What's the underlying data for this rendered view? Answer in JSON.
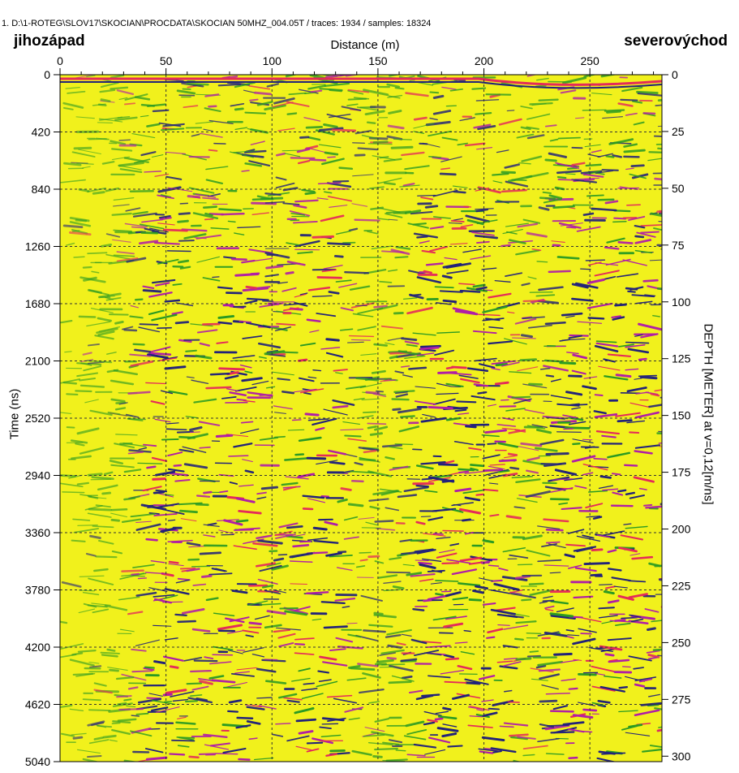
{
  "header": {
    "file_info": "1. D:\\1-ROTEG\\SLOV17\\SKOCIAN\\PROCDATA\\SKOCIAN 50MHZ_004.05T  / traces: 1934 / samples: 18324"
  },
  "labels": {
    "left_direction": "jihozápad",
    "right_direction": "severovýchod"
  },
  "chart_data": {
    "type": "heatmap",
    "title": "",
    "xlabel": "Distance (m)",
    "ylabel": "Time (ns)",
    "y2label": "DEPTH [METER] at v=0,12[m/ns]",
    "xlim": [
      0,
      284
    ],
    "ylim": [
      0,
      5040
    ],
    "y2lim": [
      0,
      302.4
    ],
    "x_ticks": [
      0,
      50,
      100,
      150,
      200,
      250
    ],
    "y_ticks": [
      0,
      420,
      840,
      1260,
      1680,
      2100,
      2520,
      2940,
      3360,
      3780,
      4200,
      4620,
      5040
    ],
    "y2_ticks": [
      0,
      25,
      50,
      75,
      100,
      125,
      150,
      175,
      200,
      225,
      250,
      275,
      300
    ],
    "grid": true,
    "colormap": [
      "#f5f51e",
      "#2a9a22",
      "#e42a5a",
      "#b01ea6",
      "#22227a"
    ],
    "background_color": "#f1f11c"
  }
}
